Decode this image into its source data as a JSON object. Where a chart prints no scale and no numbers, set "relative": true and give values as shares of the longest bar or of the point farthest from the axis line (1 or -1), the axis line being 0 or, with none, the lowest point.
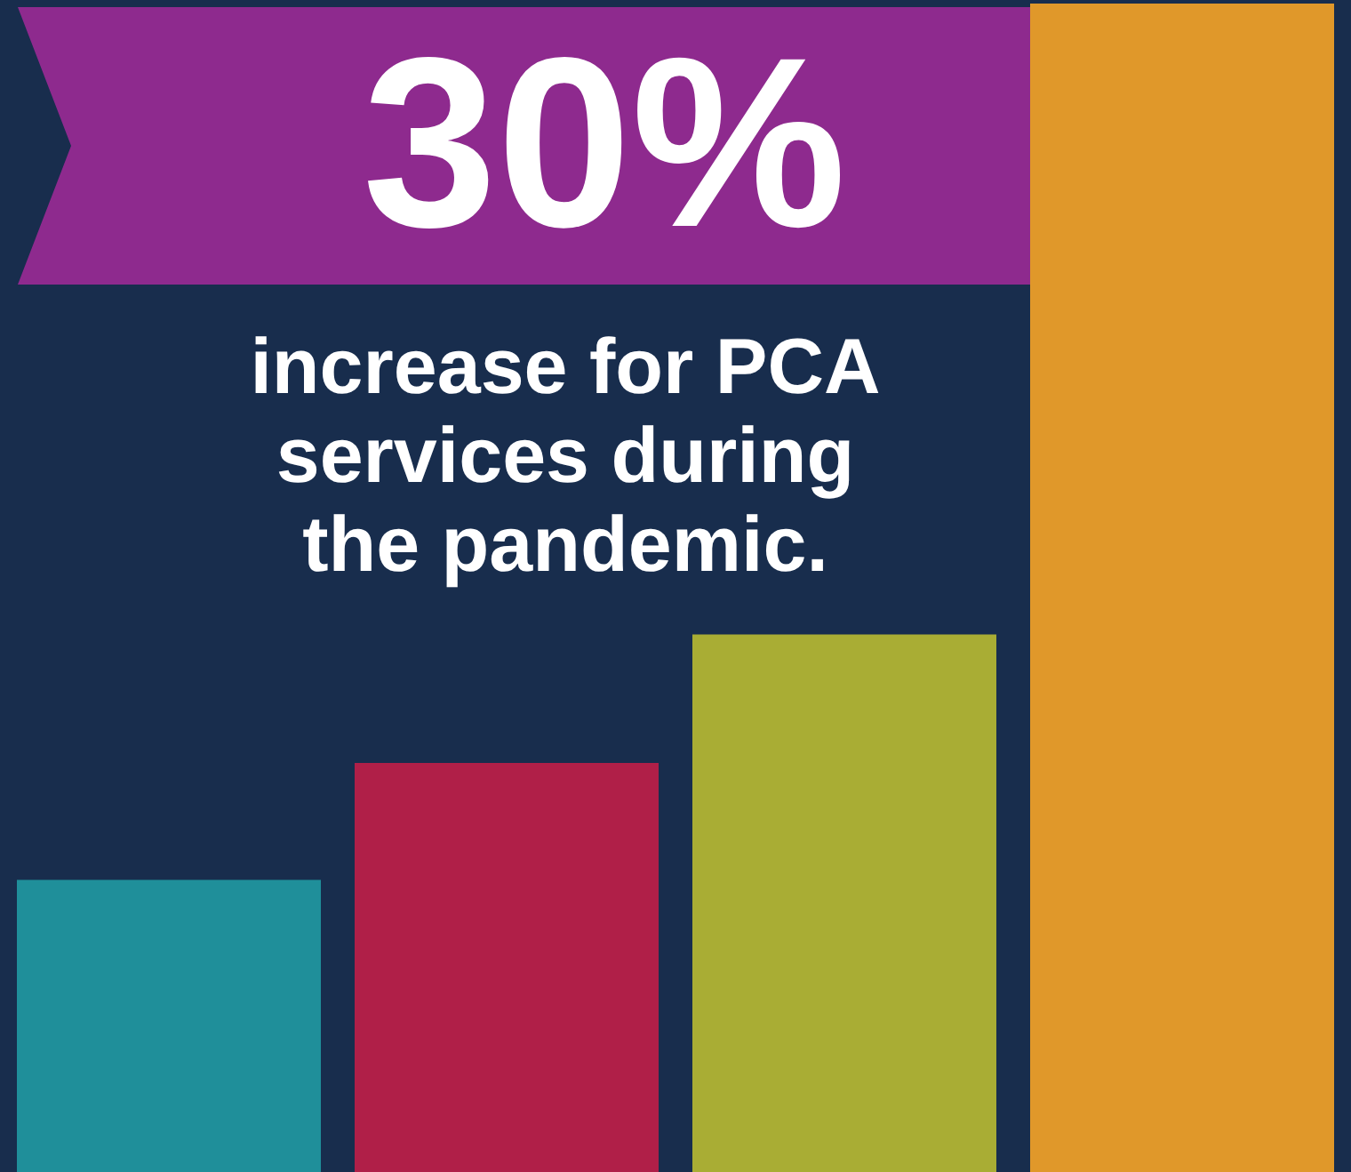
{
  "chart_data": {
    "type": "bar",
    "title": "30%",
    "subtitle": "increase for PCA services during the pandemic.",
    "categories": [
      null,
      null,
      null,
      null
    ],
    "values": [
      0.25,
      0.35,
      0.46,
      1
    ],
    "colors": [
      "#1f8f9a",
      "#b01f48",
      "#a9ad34",
      "#e0982a"
    ],
    "relative": true,
    "legend": false
  }
}
